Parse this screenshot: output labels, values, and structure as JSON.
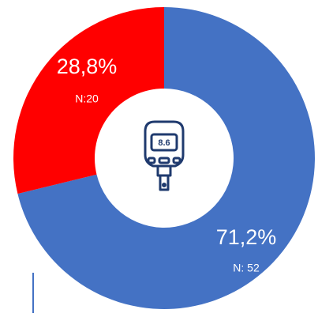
{
  "chart_data": {
    "type": "donut",
    "series": [
      {
        "name": null,
        "values": [
          71.2,
          28.8
        ],
        "value_labels": [
          "71,2%",
          "28,8%"
        ],
        "colors": [
          "#4472c4",
          "#ff0000"
        ]
      }
    ],
    "counts": [
      52,
      20
    ],
    "count_labels": [
      "N: 52",
      "N:20"
    ]
  }
}
